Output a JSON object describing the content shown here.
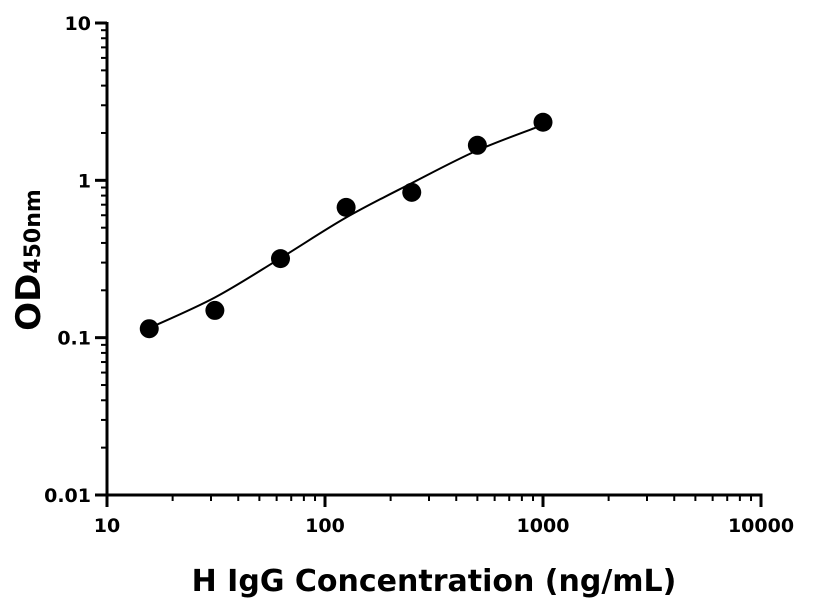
{
  "chart_data": {
    "type": "scatter",
    "title": "",
    "xlabel": "H IgG Concentration (ng/mL)",
    "ylabel_main": "OD",
    "ylabel_sub": "450nm",
    "xscale": "log",
    "yscale": "log",
    "xlim": [
      10,
      10000
    ],
    "ylim": [
      0.01,
      10
    ],
    "grid": false,
    "x_ticks": [
      10,
      100,
      1000,
      10000
    ],
    "x_tick_labels": [
      "10",
      "100",
      "1000",
      "10000"
    ],
    "y_ticks": [
      0.01,
      0.1,
      1,
      10
    ],
    "y_tick_labels": [
      "0.01",
      "0.1",
      "1",
      "10"
    ],
    "points": {
      "x": [
        15.625,
        31.25,
        62.5,
        125,
        250,
        500,
        1000
      ],
      "y": [
        0.114,
        0.149,
        0.318,
        0.673,
        0.839,
        1.67,
        2.34
      ]
    },
    "fit_curve": {
      "x": [
        15.625,
        31.25,
        62.5,
        125,
        250,
        500,
        1000
      ],
      "y": [
        0.115,
        0.18,
        0.32,
        0.58,
        0.96,
        1.55,
        2.25
      ]
    },
    "colors": {
      "points": "#000000",
      "curve": "#000000"
    }
  }
}
